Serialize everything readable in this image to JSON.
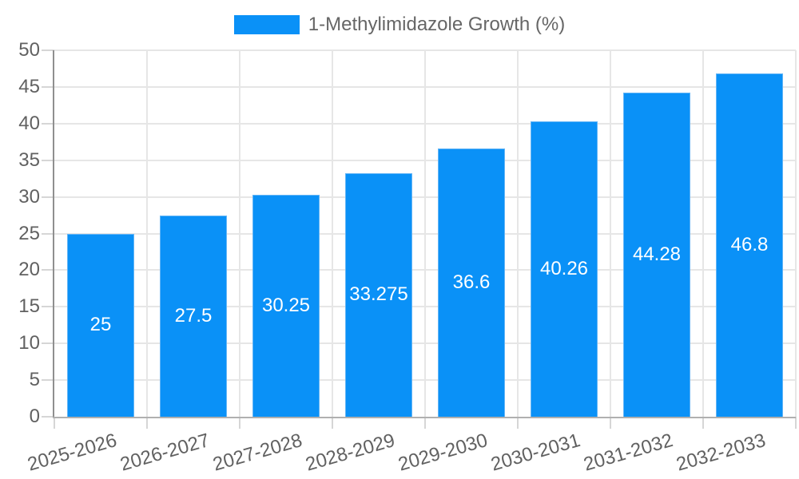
{
  "chart_data": {
    "type": "bar",
    "title": "1-Methylimidazole Growth (%)",
    "legend": {
      "label": "1-Methylimidazole Growth (%)",
      "position": "top-center"
    },
    "categories": [
      "2025-2026",
      "2026-2027",
      "2027-2028",
      "2028-2029",
      "2029-2030",
      "2030-2031",
      "2031-2032",
      "2032-2033"
    ],
    "values": [
      25,
      27.5,
      30.25,
      33.275,
      36.6,
      40.26,
      44.28,
      46.8
    ],
    "value_labels": [
      "25",
      "27.5",
      "30.25",
      "33.275",
      "36.6",
      "40.26",
      "44.28",
      "46.8"
    ],
    "xlabel": "",
    "ylabel": "",
    "ylim": [
      0,
      50
    ],
    "ytick_step": 5,
    "ytick_labels": [
      "0",
      "5",
      "10",
      "15",
      "20",
      "25",
      "30",
      "35",
      "40",
      "45",
      "50"
    ],
    "grid": true,
    "x_label_rotation_deg": -16,
    "colors": {
      "bar_fill": "#0a91f7",
      "bar_border": "#64b5f6",
      "value_label": "#ffffff",
      "grid_line": "#e6e6e6",
      "axis_line_y": "#8f8f8f",
      "axis_line_x": "#b0b0b0",
      "tick_mark": "#d6d6d6",
      "tick_label": "#616161",
      "legend_text": "#666666",
      "background": "#ffffff"
    }
  }
}
